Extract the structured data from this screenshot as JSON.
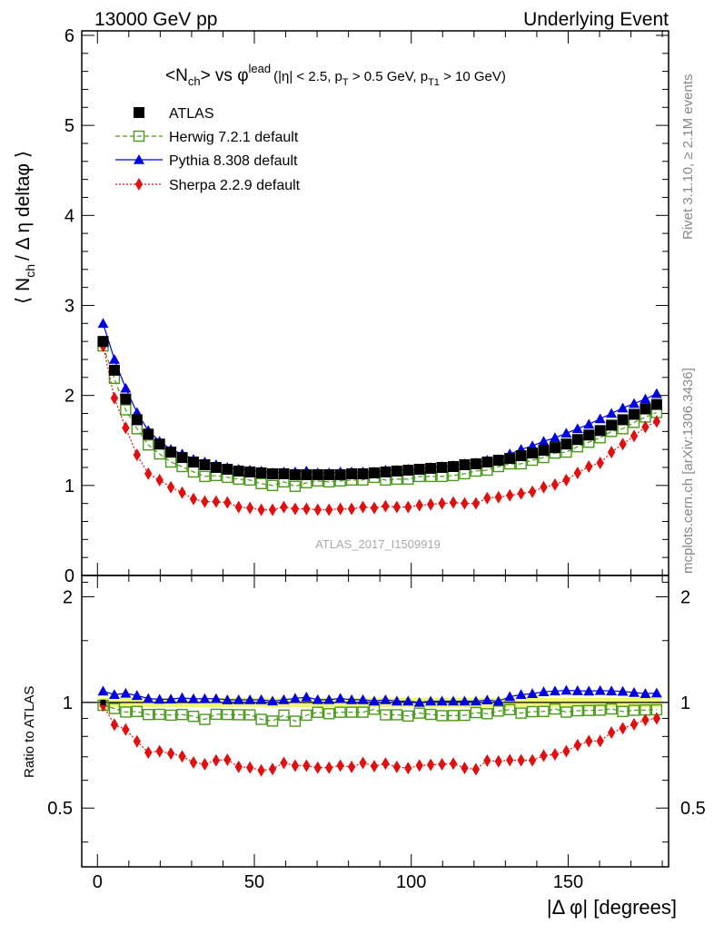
{
  "header": {
    "left_label": "13000 GeV pp",
    "right_label": "Underlying Event"
  },
  "side_labels": {
    "rivet": "Rivet 3.1.10, ≥ 2.1M events",
    "mcplots": "mcplots.cern.ch [arXiv:1306.3436]"
  },
  "chart_data": {
    "type": "scatter",
    "title": {
      "prefix": "<N",
      "prefix_sub": "ch",
      "mid": "> vs φ",
      "mid_sup": "lead",
      "cuts": "(|η| < 2.5, p",
      "cuts_sub1": "T",
      "cuts_mid": " > 0.5 GeV, p",
      "cuts_sub2": "T1",
      "cuts_end": " > 10 GeV)"
    },
    "ylabel_top": {
      "a": "⟨ N",
      "a_sub": "ch",
      "b": "/ Δ η deltaφ ⟩"
    },
    "ylabel_bottom": "Ratio to ATLAS",
    "xlabel": "|Δ φ| [degrees]",
    "watermark": "ATLAS_2017_I1509919",
    "xlim": [
      -5,
      182
    ],
    "ylim_top": [
      0,
      6.05
    ],
    "ylim_bottom": [
      0.34,
      2.3
    ],
    "yticks_top": [
      0,
      1,
      2,
      3,
      4,
      5,
      6
    ],
    "yticks_bottom": [
      0.5,
      1,
      2
    ],
    "xticks": [
      0,
      50,
      100,
      150
    ],
    "ytick_labels_bottom": [
      "0.5",
      "1",
      "2"
    ],
    "legend_position": "top-left",
    "x": [
      1.8,
      5.4,
      9.0,
      12.6,
      16.2,
      19.8,
      23.4,
      27.0,
      30.6,
      34.2,
      37.8,
      41.4,
      45.0,
      48.6,
      52.2,
      55.8,
      59.4,
      63.0,
      66.6,
      70.2,
      73.8,
      77.4,
      81.0,
      84.6,
      88.2,
      91.8,
      95.4,
      99.0,
      102.6,
      106.2,
      109.8,
      113.4,
      117.0,
      120.6,
      124.2,
      127.8,
      131.4,
      135.0,
      138.6,
      142.2,
      145.8,
      149.4,
      153.0,
      156.6,
      160.2,
      163.8,
      167.4,
      171.0,
      174.6,
      178.2
    ],
    "series": [
      {
        "name": "ATLAS",
        "color": "#000000",
        "marker": "square-filled",
        "values": [
          2.6,
          2.28,
          1.96,
          1.73,
          1.57,
          1.46,
          1.37,
          1.31,
          1.26,
          1.23,
          1.2,
          1.18,
          1.16,
          1.15,
          1.14,
          1.13,
          1.13,
          1.12,
          1.12,
          1.12,
          1.12,
          1.12,
          1.13,
          1.13,
          1.14,
          1.15,
          1.16,
          1.17,
          1.18,
          1.19,
          1.2,
          1.21,
          1.23,
          1.24,
          1.26,
          1.28,
          1.3,
          1.33,
          1.36,
          1.39,
          1.42,
          1.46,
          1.51,
          1.56,
          1.61,
          1.67,
          1.73,
          1.79,
          1.85,
          1.9
        ]
      },
      {
        "name": "Herwig 7.2.1 default",
        "color": "#4a9a1a",
        "marker": "square-open",
        "line": "dashed",
        "values": [
          2.55,
          2.19,
          1.84,
          1.63,
          1.45,
          1.35,
          1.26,
          1.21,
          1.15,
          1.1,
          1.11,
          1.09,
          1.07,
          1.06,
          1.02,
          1.0,
          1.04,
          0.99,
          1.03,
          1.05,
          1.04,
          1.05,
          1.06,
          1.06,
          1.09,
          1.06,
          1.07,
          1.07,
          1.1,
          1.1,
          1.1,
          1.11,
          1.13,
          1.16,
          1.17,
          1.21,
          1.24,
          1.24,
          1.28,
          1.31,
          1.36,
          1.37,
          1.43,
          1.48,
          1.53,
          1.6,
          1.63,
          1.7,
          1.76,
          1.81
        ]
      },
      {
        "name": "Pythia 8.308 default",
        "color": "#0000e0",
        "marker": "triangle",
        "line": "solid",
        "values": [
          2.8,
          2.4,
          2.08,
          1.81,
          1.61,
          1.49,
          1.4,
          1.35,
          1.29,
          1.26,
          1.23,
          1.2,
          1.18,
          1.17,
          1.16,
          1.14,
          1.15,
          1.15,
          1.16,
          1.14,
          1.14,
          1.15,
          1.15,
          1.15,
          1.15,
          1.17,
          1.17,
          1.18,
          1.18,
          1.2,
          1.21,
          1.22,
          1.24,
          1.25,
          1.28,
          1.29,
          1.35,
          1.4,
          1.44,
          1.49,
          1.53,
          1.58,
          1.63,
          1.68,
          1.74,
          1.8,
          1.86,
          1.91,
          1.96,
          2.02
        ]
      },
      {
        "name": "Sherpa 2.2.9 default",
        "color": "#e01010",
        "marker": "diamond",
        "line": "dotted",
        "values": [
          2.55,
          1.97,
          1.64,
          1.34,
          1.13,
          1.06,
          0.98,
          0.92,
          0.85,
          0.82,
          0.82,
          0.81,
          0.76,
          0.75,
          0.73,
          0.73,
          0.76,
          0.74,
          0.74,
          0.73,
          0.73,
          0.74,
          0.74,
          0.76,
          0.75,
          0.77,
          0.76,
          0.76,
          0.78,
          0.79,
          0.8,
          0.81,
          0.8,
          0.8,
          0.86,
          0.87,
          0.89,
          0.91,
          0.93,
          0.98,
          1.01,
          1.06,
          1.14,
          1.21,
          1.25,
          1.37,
          1.46,
          1.55,
          1.65,
          1.71
        ]
      }
    ],
    "band_color": "#eef77a"
  }
}
